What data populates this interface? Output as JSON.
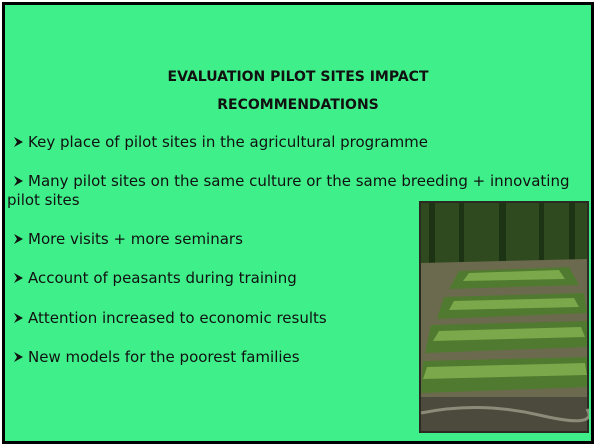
{
  "title": "EVALUATION PILOT SITES IMPACT RECOMMENDATIONS",
  "bullets": [
    "Key place of pilot sites in the agricultural programme",
    "Many pilot sites on the same culture or the same breeding + innovating pilot sites",
    "More visits + more seminars",
    "Account of peasants during training",
    "Attention increased to economic results",
    "New models for the poorest families"
  ]
}
